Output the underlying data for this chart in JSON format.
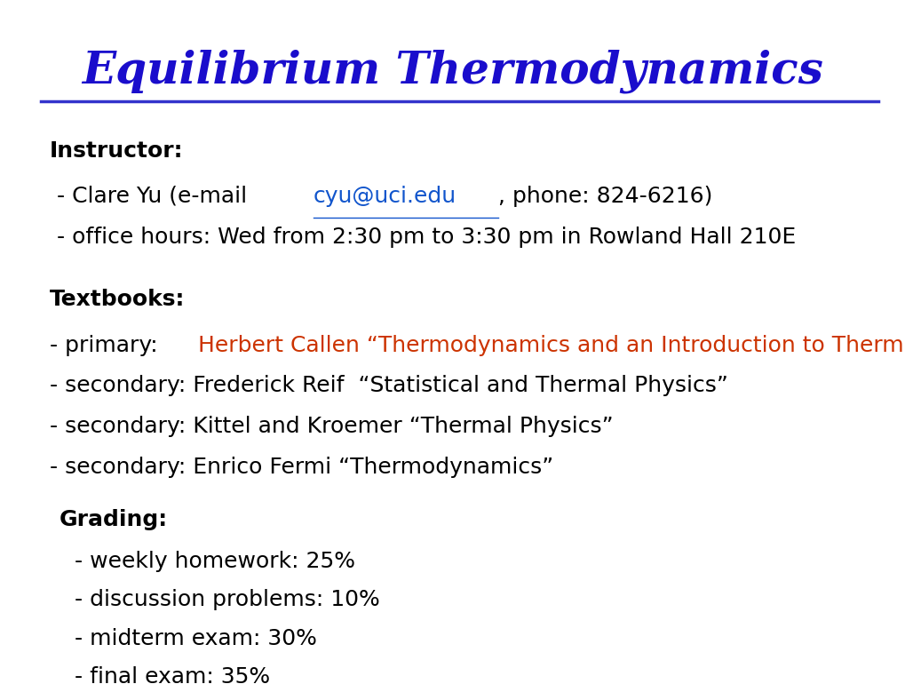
{
  "title": "Equilibrium Thermodynamics",
  "title_color": "#1a0dcc",
  "title_fontsize": 36,
  "line_color": "#3333cc",
  "bg_color": "#ffffff",
  "instructor_label": "Instructor:",
  "instructor_line1_normal": " - Clare Yu (e-mail ",
  "instructor_email": "cyu@uci.edu",
  "instructor_email_color": "#1155cc",
  "instructor_line1_end": ", phone: 824-6216)",
  "instructor_line2": " - office hours: Wed from 2:30 pm to 3:30 pm in Rowland Hall 210E",
  "textbooks_label": "Textbooks:",
  "tb_primary_normal": "- primary: ",
  "tb_primary_colored": "Herbert Callen “Thermodynamics and an Introduction to Thermostatistics”",
  "tb_primary_color": "#cc3300",
  "tb_secondary1": "- secondary: Frederick Reif  “Statistical and Thermal Physics”",
  "tb_secondary2": "- secondary: Kittel and Kroemer “Thermal Physics”",
  "tb_secondary3": "- secondary: Enrico Fermi “Thermodynamics”",
  "grading_label": "Grading:",
  "grading_line1": " - weekly homework: 25%",
  "grading_line2": " - discussion problems: 10%",
  "grading_line3": " - midterm exam: 30%",
  "grading_line4": " - final exam: 35%",
  "body_fontsize": 18,
  "label_fontsize": 18
}
